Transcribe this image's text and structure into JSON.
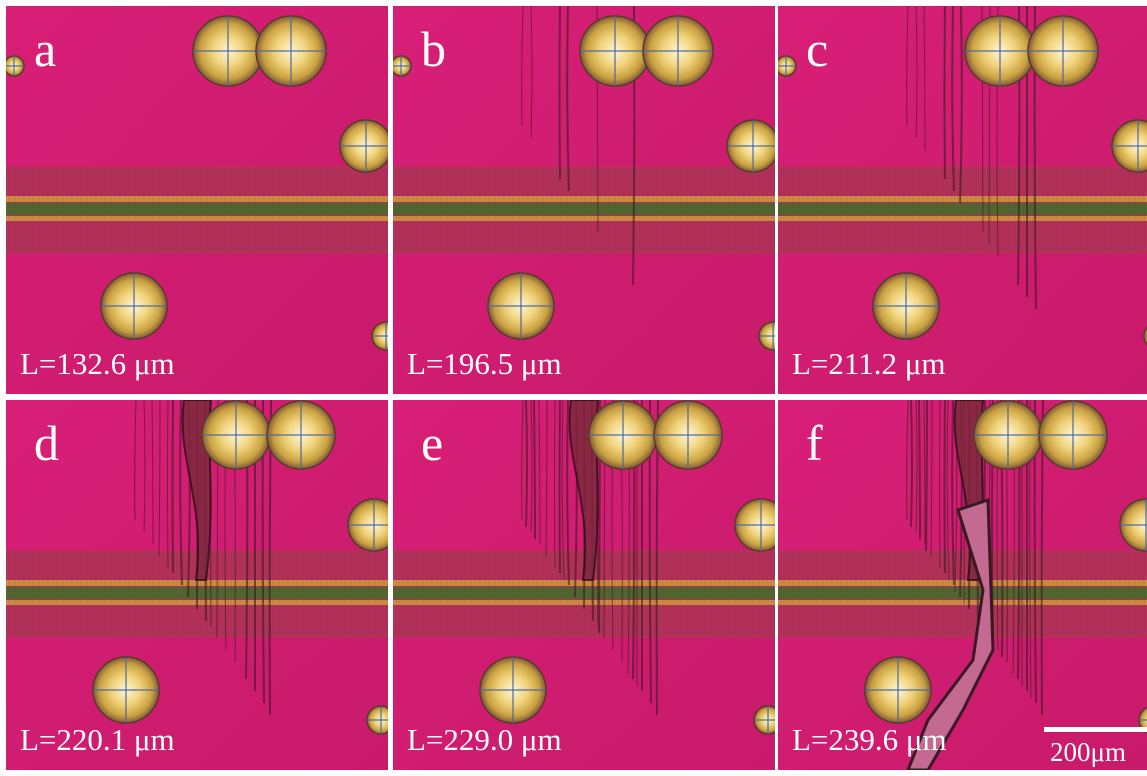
{
  "panels": [
    {
      "letter": "a",
      "caption": "L=132.6 μm"
    },
    {
      "letter": "b",
      "caption": "L=196.5 μm"
    },
    {
      "letter": "c",
      "caption": "L=211.2 μm"
    },
    {
      "letter": "d",
      "caption": "L=220.1 μm"
    },
    {
      "letter": "e",
      "caption": "L=229.0 μm"
    },
    {
      "letter": "f",
      "caption": "L=239.6 μm"
    }
  ],
  "scale_bar": {
    "label": "200μm"
  }
}
